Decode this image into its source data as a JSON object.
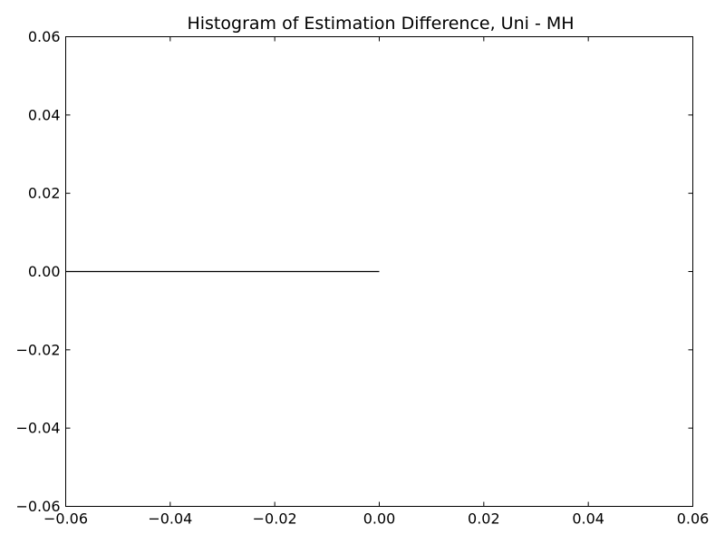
{
  "chart_data": {
    "type": "line",
    "title": "Histogram of Estimation Difference, Uni - MH",
    "xlabel": "",
    "ylabel": "",
    "xlim": [
      -0.06,
      0.06
    ],
    "ylim": [
      -0.06,
      0.06
    ],
    "grid": false,
    "x_ticks": [
      -0.06,
      -0.04,
      -0.02,
      0.0,
      0.02,
      0.04,
      0.06
    ],
    "x_tick_labels": [
      "−0.06",
      "−0.04",
      "−0.02",
      "0.00",
      "0.02",
      "0.04",
      "0.06"
    ],
    "y_ticks": [
      0.06,
      0.04,
      0.02,
      0.0,
      -0.02,
      -0.04,
      -0.06
    ],
    "y_tick_labels": [
      "0.06",
      "0.04",
      "0.02",
      "0.00",
      "−0.02",
      "−0.04",
      "−0.06"
    ],
    "series": [
      {
        "x": [
          -0.06,
          0.0
        ],
        "y": [
          0.0,
          0.0
        ],
        "color": "#000000"
      }
    ]
  }
}
